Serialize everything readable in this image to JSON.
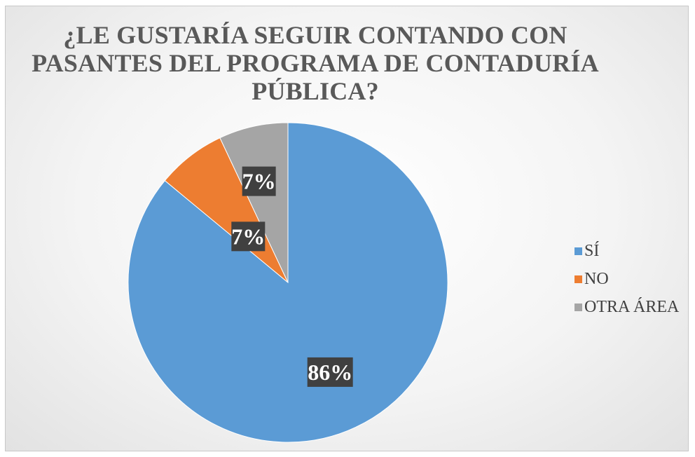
{
  "chart_data": {
    "type": "pie",
    "title": "¿LE GUSTARÍA SEGUIR CONTANDO CON PASANTES DEL PROGRAMA DE CONTADURÍA PÚBLICA?",
    "title_lines": [
      "¿LE GUSTARÍA SEGUIR CONTANDO CON",
      "PASANTES DEL PROGRAMA DE CONTADURÍA",
      "PÚBLICA?"
    ],
    "categories": [
      "SÍ",
      "NO",
      "OTRA ÁREA"
    ],
    "values": [
      86,
      7,
      7
    ],
    "data_labels": [
      "86%",
      "7%",
      "7%"
    ],
    "colors": [
      "#5b9bd5",
      "#ed7d31",
      "#a5a5a5"
    ],
    "legend_position": "right"
  }
}
